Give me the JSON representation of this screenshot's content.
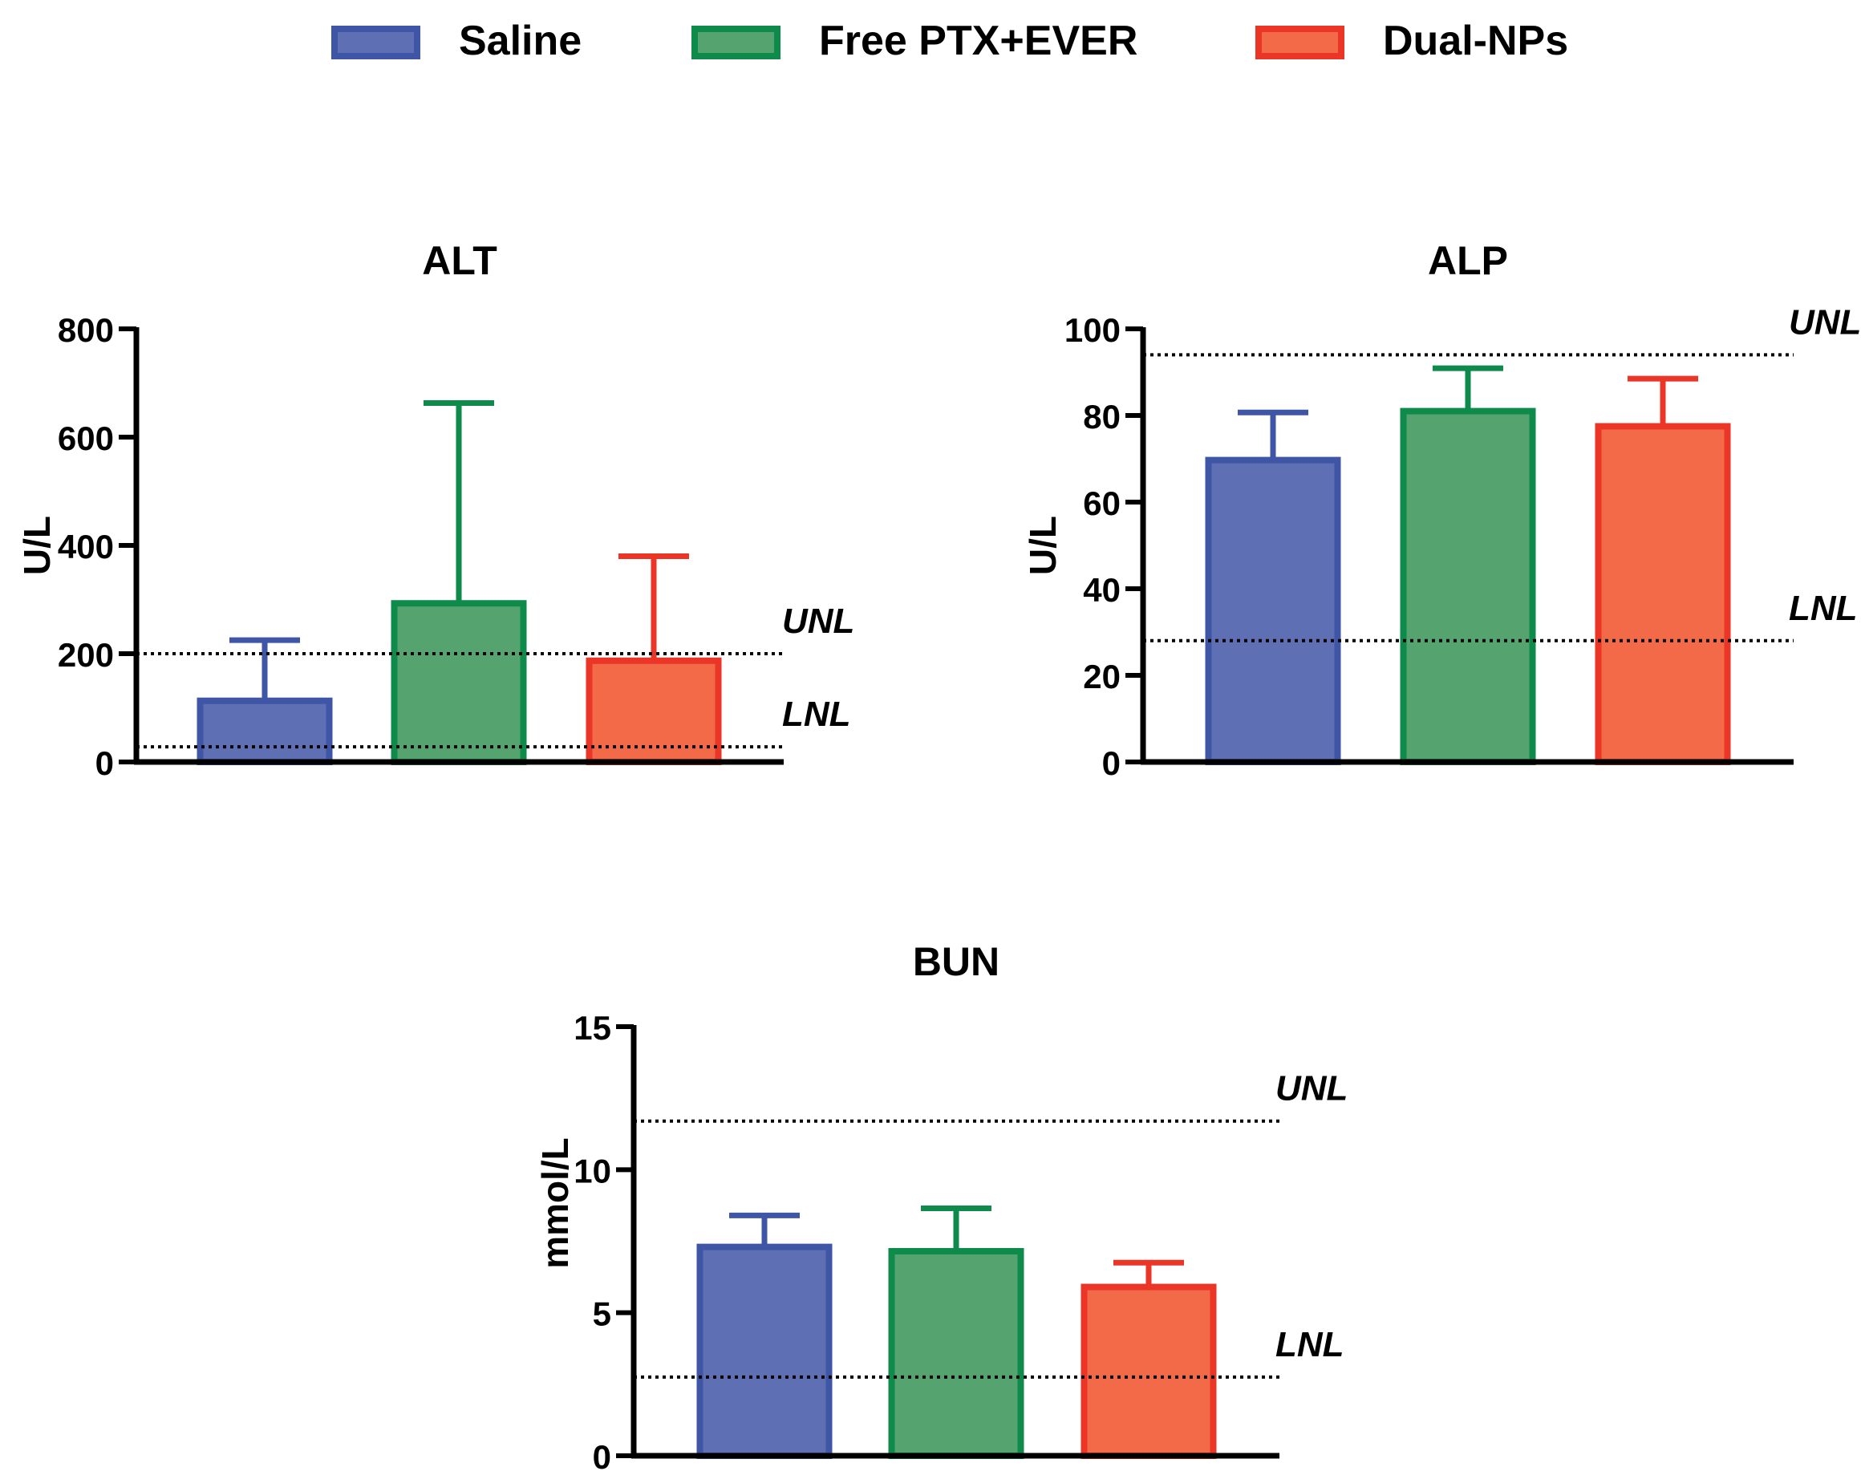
{
  "legend": [
    {
      "name": "Saline",
      "fill": "#5e6fb4",
      "stroke": "#3f55a6"
    },
    {
      "name": "Free PTX+EVER",
      "fill": "#55a46f",
      "stroke": "#0e8a4b"
    },
    {
      "name": "Dual-NPs",
      "fill": "#f26a47",
      "stroke": "#ea3527"
    }
  ],
  "chart_data": [
    {
      "type": "bar",
      "title": "ALT",
      "ylabel": "U/L",
      "xlabel": "",
      "ylim": [
        0,
        800
      ],
      "yticks": [
        0,
        200,
        400,
        600,
        800
      ],
      "categories": [
        "Saline",
        "Free PTX+EVER",
        "Dual-NPs"
      ],
      "values": [
        113,
        293,
        187
      ],
      "errors": [
        112,
        370,
        193
      ],
      "reference_lines": [
        {
          "label": "UNL",
          "value": 200
        },
        {
          "label": "LNL",
          "value": 28
        }
      ]
    },
    {
      "type": "bar",
      "title": "ALP",
      "ylabel": "U/L",
      "xlabel": "",
      "ylim": [
        0,
        100
      ],
      "yticks": [
        0,
        20,
        40,
        60,
        80,
        100
      ],
      "categories": [
        "Saline",
        "Free PTX+EVER",
        "Dual-NPs"
      ],
      "values": [
        69.7,
        81,
        77.5
      ],
      "errors": [
        11,
        9.9,
        11
      ],
      "reference_lines": [
        {
          "label": "UNL",
          "value": 94
        },
        {
          "label": "LNL",
          "value": 28
        }
      ]
    },
    {
      "type": "bar",
      "title": "BUN",
      "ylabel": "mmol/L",
      "xlabel": "",
      "ylim": [
        0,
        15
      ],
      "yticks": [
        0,
        5,
        10,
        15
      ],
      "categories": [
        "Saline",
        "Free PTX+EVER",
        "Dual-NPs"
      ],
      "values": [
        7.3,
        7.15,
        5.9
      ],
      "errors": [
        1.1,
        1.5,
        0.85
      ],
      "reference_lines": [
        {
          "label": "UNL",
          "value": 11.7
        },
        {
          "label": "LNL",
          "value": 2.75
        }
      ]
    }
  ]
}
